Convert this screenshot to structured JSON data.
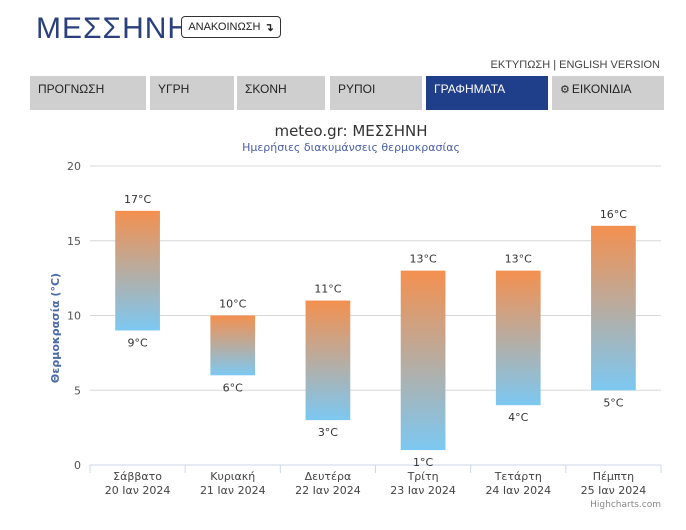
{
  "header": {
    "city": "ΜΕΣΣΗΝΗ",
    "announce_label": "ΑΝΑΚΟΙΝΩΣΗ",
    "announce_arrow": "↴"
  },
  "toplinks": {
    "print": "ΕΚΤΥΠΩΣΗ",
    "separator": "|",
    "english": "ENGLISH VERSION"
  },
  "tabs": [
    {
      "label": "ΠΡΟΓΝΩΣΗ",
      "active": false
    },
    {
      "label": "ΥΓΡΗ",
      "active": false
    },
    {
      "label": "ΣΚΟΝΗ",
      "active": false
    },
    {
      "label": "ΡΥΠΟΙ",
      "active": false
    },
    {
      "label": "ΓΡΑΦΗΜΑΤΑ",
      "active": true
    },
    {
      "label": "ΕΙΚΟΝΙΔΙΑ",
      "active": false,
      "icon": "gear-icon"
    }
  ],
  "credit": "Highcharts.com",
  "chart_data": {
    "type": "columnrange",
    "title": "meteo.gr: ΜΕΣΣΗΝΗ",
    "subtitle": "Ημερήσιες διακυμάνσεις θερμοκρασίας",
    "ylabel": "Θερμοκρασία (°C)",
    "ylim": [
      0,
      20
    ],
    "yticks": [
      0,
      5,
      10,
      15,
      20
    ],
    "unit": "°C",
    "grid": true,
    "colors": {
      "high": "#f4904f",
      "low": "#7cc8f2"
    },
    "categories": [
      {
        "day": "Σάββατο",
        "date": "20 Ιαν 2024"
      },
      {
        "day": "Κυριακή",
        "date": "21 Ιαν 2024"
      },
      {
        "day": "Δευτέρα",
        "date": "22 Ιαν 2024"
      },
      {
        "day": "Τρίτη",
        "date": "23 Ιαν 2024"
      },
      {
        "day": "Τετάρτη",
        "date": "24 Ιαν 2024"
      },
      {
        "day": "Πέμπτη",
        "date": "25 Ιαν 2024"
      }
    ],
    "low": [
      9,
      6,
      3,
      1,
      4,
      5
    ],
    "high": [
      17,
      10,
      11,
      13,
      13,
      16
    ]
  }
}
